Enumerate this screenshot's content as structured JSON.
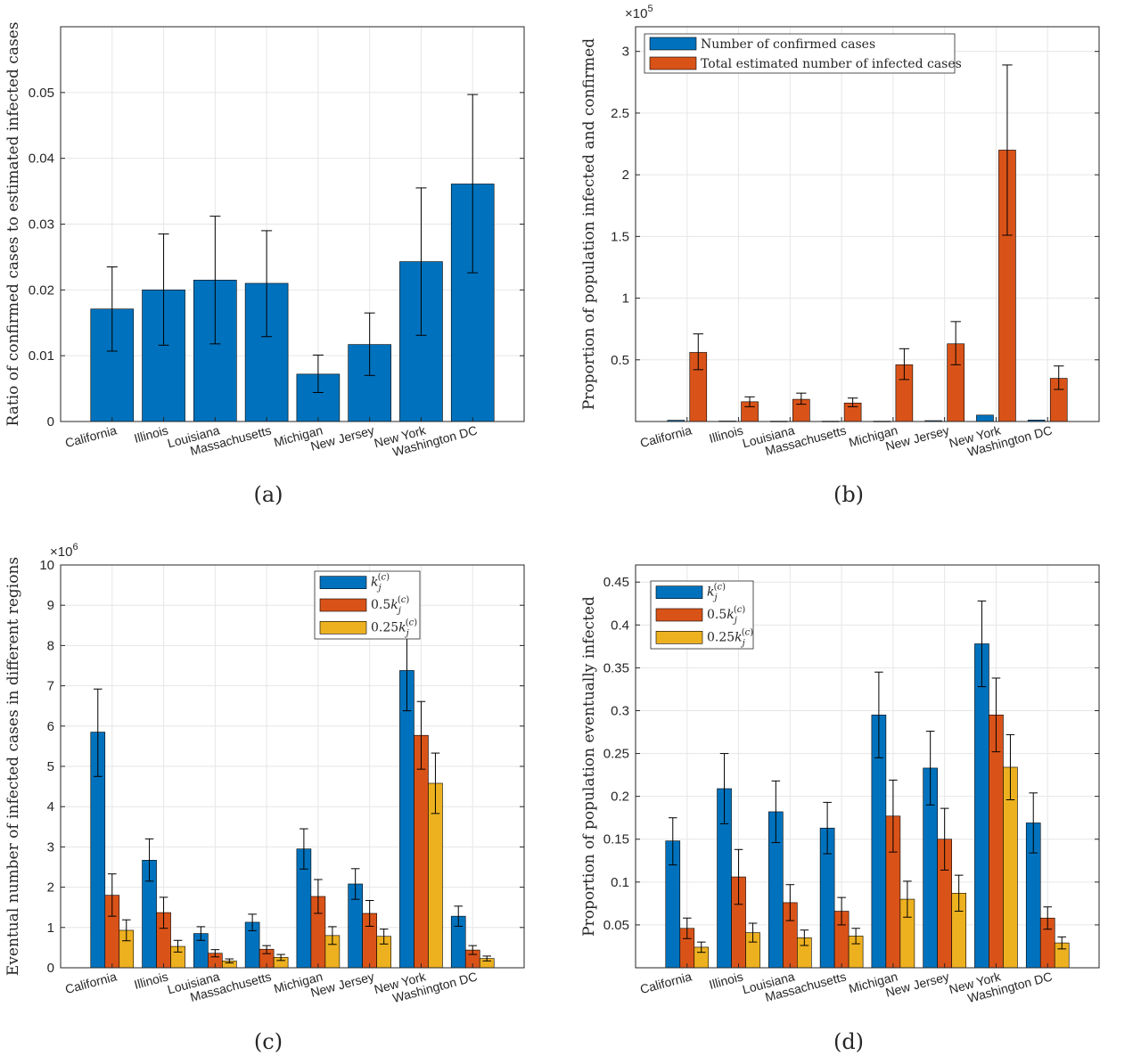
{
  "colors": {
    "blue": "#0072BD",
    "orange": "#D95319",
    "yellow": "#EDB120",
    "grid": "#e6e6e6",
    "axis": "#262626"
  },
  "chart_data": [
    {
      "panel": "(a)",
      "type": "bar",
      "ylabel": "Ratio of confirmed cases to estimated infected cases",
      "ylim": [
        0,
        0.06
      ],
      "yticks": [
        0,
        0.01,
        0.02,
        0.03,
        0.04,
        0.05
      ],
      "ytick_labels": [
        "0",
        "0.01",
        "0.02",
        "0.03",
        "0.04",
        "0.05"
      ],
      "exponent": "",
      "grid": true,
      "legend": null,
      "categories": [
        "California",
        "Illinois",
        "Louisiana",
        "Massachusetts",
        "Michigan",
        "New Jersey",
        "New York",
        "Washington DC"
      ],
      "series": [
        {
          "name": "",
          "color": "#0072BD",
          "values": [
            0.0171,
            0.02,
            0.0215,
            0.021,
            0.0072,
            0.0117,
            0.0243,
            0.0361
          ],
          "err_low": [
            0.0107,
            0.0116,
            0.0118,
            0.0129,
            0.0044,
            0.007,
            0.0131,
            0.0226
          ],
          "err_high": [
            0.0235,
            0.0285,
            0.0312,
            0.029,
            0.0101,
            0.0165,
            0.0355,
            0.0497
          ]
        }
      ]
    },
    {
      "panel": "(b)",
      "type": "bar",
      "ylabel": "Proportion of population infected and confirmed",
      "ylim": [
        0,
        3.2
      ],
      "yticks": [
        0.5,
        1,
        1.5,
        2,
        2.5,
        3
      ],
      "ytick_labels": [
        "0.5",
        "1",
        "1.5",
        "2",
        "2.5",
        "3"
      ],
      "exponent": "5",
      "grid": true,
      "legend": "top-left",
      "categories": [
        "California",
        "Illinois",
        "Louisiana",
        "Massachusetts",
        "Michigan",
        "New Jersey",
        "New York",
        "Washington DC"
      ],
      "series": [
        {
          "name": "Number of confirmed cases",
          "color": "#0072BD",
          "values": [
            0.01,
            0.004,
            0.003,
            0.003,
            0.003,
            0.007,
            0.052,
            0.012
          ],
          "err_low": null,
          "err_high": null
        },
        {
          "name": "Total estimated number of infected cases",
          "color": "#D95319",
          "values": [
            0.56,
            0.16,
            0.18,
            0.15,
            0.46,
            0.63,
            2.2,
            0.35
          ],
          "err_low": [
            0.42,
            0.12,
            0.14,
            0.12,
            0.34,
            0.46,
            1.51,
            0.26
          ],
          "err_high": [
            0.71,
            0.2,
            0.23,
            0.19,
            0.59,
            0.81,
            2.89,
            0.45
          ]
        }
      ]
    },
    {
      "panel": "(c)",
      "type": "bar",
      "ylabel": "Eventual number of infected cases in different regions",
      "ylim": [
        0,
        10
      ],
      "yticks": [
        0,
        1,
        2,
        3,
        4,
        5,
        6,
        7,
        8,
        9,
        10
      ],
      "ytick_labels": [
        "0",
        "1",
        "2",
        "3",
        "4",
        "5",
        "6",
        "7",
        "8",
        "9",
        "10"
      ],
      "exponent": "6",
      "grid": true,
      "legend": "top-right",
      "categories": [
        "California",
        "Illinois",
        "Louisiana",
        "Massachusetts",
        "Michigan",
        "New Jersey",
        "New York",
        "Washington DC"
      ],
      "series": [
        {
          "name": "k_j^(c)",
          "label_coef": "",
          "color": "#0072BD",
          "values": [
            5.85,
            2.67,
            0.85,
            1.13,
            2.95,
            2.08,
            7.38,
            1.28
          ],
          "err_low": [
            4.75,
            2.15,
            0.68,
            0.92,
            2.45,
            1.7,
            6.38,
            1.03
          ],
          "err_high": [
            6.92,
            3.2,
            1.02,
            1.33,
            3.45,
            2.46,
            8.35,
            1.53
          ]
        },
        {
          "name": "0.5k_j^(c)",
          "label_coef": "0.5",
          "color": "#D95319",
          "values": [
            1.8,
            1.37,
            0.36,
            0.46,
            1.77,
            1.35,
            5.77,
            0.44
          ],
          "err_low": [
            1.28,
            0.98,
            0.27,
            0.35,
            1.35,
            1.03,
            4.93,
            0.33
          ],
          "err_high": [
            2.33,
            1.75,
            0.45,
            0.55,
            2.19,
            1.67,
            6.61,
            0.55
          ]
        },
        {
          "name": "0.25k_j^(c)",
          "label_coef": "0.25",
          "color": "#EDB120",
          "values": [
            0.93,
            0.53,
            0.17,
            0.26,
            0.8,
            0.78,
            4.58,
            0.23
          ],
          "err_low": [
            0.67,
            0.39,
            0.12,
            0.18,
            0.58,
            0.59,
            3.83,
            0.17
          ],
          "err_high": [
            1.19,
            0.68,
            0.22,
            0.33,
            1.02,
            0.96,
            5.33,
            0.29
          ]
        }
      ]
    },
    {
      "panel": "(d)",
      "type": "bar",
      "ylabel": "Proportion of population eventually infected",
      "ylim": [
        0,
        0.47
      ],
      "yticks": [
        0.05,
        0.1,
        0.15,
        0.2,
        0.25,
        0.3,
        0.35,
        0.4,
        0.45
      ],
      "ytick_labels": [
        "0.05",
        "0.1",
        "0.15",
        "0.2",
        "0.25",
        "0.3",
        "0.35",
        "0.4",
        "0.45"
      ],
      "exponent": "",
      "grid": true,
      "legend": "top-left",
      "categories": [
        "California",
        "Illinois",
        "Louisiana",
        "Massachusetts",
        "Michigan",
        "New Jersey",
        "New York",
        "Washington DC"
      ],
      "series": [
        {
          "name": "k_j^(c)",
          "label_coef": "",
          "color": "#0072BD",
          "values": [
            0.148,
            0.209,
            0.182,
            0.163,
            0.295,
            0.233,
            0.378,
            0.169
          ],
          "err_low": [
            0.12,
            0.168,
            0.146,
            0.133,
            0.245,
            0.19,
            0.328,
            0.134
          ],
          "err_high": [
            0.175,
            0.25,
            0.218,
            0.193,
            0.345,
            0.276,
            0.428,
            0.204
          ]
        },
        {
          "name": "0.5k_j^(c)",
          "label_coef": "0.5",
          "color": "#D95319",
          "values": [
            0.046,
            0.106,
            0.076,
            0.066,
            0.177,
            0.15,
            0.295,
            0.058
          ],
          "err_low": [
            0.034,
            0.074,
            0.055,
            0.05,
            0.135,
            0.114,
            0.252,
            0.045
          ],
          "err_high": [
            0.058,
            0.138,
            0.097,
            0.082,
            0.219,
            0.186,
            0.338,
            0.071
          ]
        },
        {
          "name": "0.25k_j^(c)",
          "label_coef": "0.25",
          "color": "#EDB120",
          "values": [
            0.024,
            0.041,
            0.035,
            0.037,
            0.08,
            0.087,
            0.234,
            0.029
          ],
          "err_low": [
            0.018,
            0.03,
            0.026,
            0.028,
            0.059,
            0.066,
            0.196,
            0.022
          ],
          "err_high": [
            0.03,
            0.052,
            0.044,
            0.046,
            0.101,
            0.108,
            0.272,
            0.036
          ]
        }
      ]
    }
  ]
}
